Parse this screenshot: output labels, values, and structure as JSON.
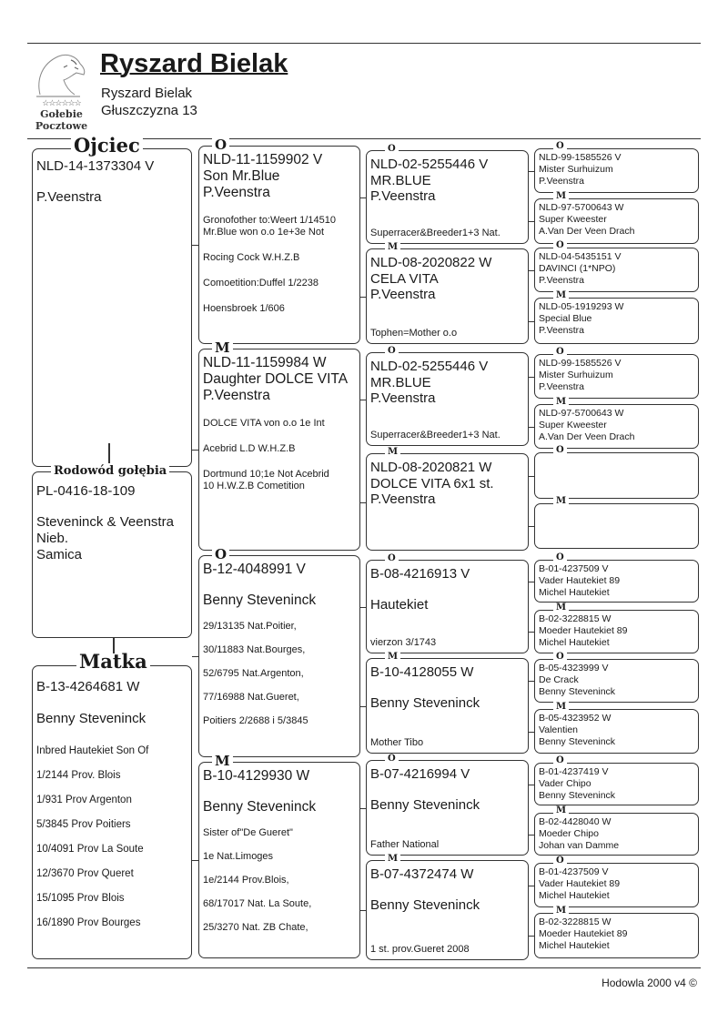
{
  "header": {
    "title": "Ryszard Bielak",
    "owner_name": "Ryszard Bielak",
    "address": "Głuszczyzna 13",
    "logo": {
      "icon": "eagle-head-icon",
      "text_line1": "Gołebie",
      "text_line2": "Pocztowe"
    }
  },
  "ojciec": {
    "label": "Ojciec",
    "ring": "NLD-14-1373304 V",
    "breeder": "P.Veenstra"
  },
  "pigeon": {
    "label": "Rodowód gołębia",
    "ring": "PL-0416-18-109",
    "breeder": "Steveninck & Veenstra",
    "color": "Nieb.",
    "sex": "Samica"
  },
  "matka": {
    "label": "Matka",
    "ring": "B-13-4264681 W",
    "breeder": "Benny Steveninck",
    "notes": [
      "Inbred Hautekiet Son Of",
      "1/2144 Prov. Blois",
      "1/931 Prov Argenton",
      "5/3845 Prov Poitiers",
      "10/4091 Prov La Soute",
      "12/3670 Prov Queret",
      "15/1095 Prov Blois",
      "16/1890 Prov Bourges"
    ]
  },
  "parents": [
    {
      "label": "O",
      "lines": [
        "NLD-11-1159902 V",
        "Son Mr.Blue",
        "P.Veenstra"
      ],
      "notes": [
        "Gronofother to:Weert 1/14510\nMr.Blue won o.o 1e+3e Not",
        "Rocing Cock W.H.Z.B",
        "Comoetition:Duffel 1/2238",
        "Hoensbroek 1/606"
      ]
    },
    {
      "label": "M",
      "lines": [
        "NLD-11-1159984 W",
        "Daughter DOLCE VITA",
        "P.Veenstra"
      ],
      "notes": [
        "DOLCE VITA von o.o 1e Int",
        "Acebrid L.D   W.H.Z.B",
        "Dortmund 10;1e Not Acebrid\n10 H.W.Z.B Cometition"
      ]
    },
    {
      "label": "O",
      "lines": [
        "B-12-4048991 V",
        "Benny Steveninck"
      ],
      "notes": [
        "29/13135 Nat.Poitier,",
        "30/11883 Nat.Bourges,",
        "52/6795 Nat.Argenton,",
        "77/16988 Nat.Gueret,",
        "Poitiers 2/2688 i 5/3845"
      ]
    },
    {
      "label": "M",
      "lines": [
        "B-10-4129930 W",
        "Benny Steveninck"
      ],
      "notes": [
        "Sister of\"De Gueret\"",
        "1e Nat.Limoges",
        "1e/2144 Prov.Blois,",
        "68/17017 Nat. La Soute,",
        "25/3270 Nat. ZB Chate,"
      ]
    }
  ],
  "grandparents": [
    {
      "label": "O",
      "lines": [
        "NLD-02-5255446 V",
        "MR.BLUE",
        "P.Veenstra"
      ],
      "note": "Superracer&Breeder1+3 Nat."
    },
    {
      "label": "M",
      "lines": [
        "NLD-08-2020822 W",
        "CELA VITA",
        "P.Veenstra"
      ],
      "note": "Tophen=Mother o.o"
    },
    {
      "label": "O",
      "lines": [
        "NLD-02-5255446 V",
        "MR.BLUE",
        "P.Veenstra"
      ],
      "note": "Superracer&Breeder1+3 Nat."
    },
    {
      "label": "M",
      "lines": [
        "NLD-08-2020821 W",
        "DOLCE VITA 6x1 st.",
        "P.Veenstra"
      ],
      "note": ""
    },
    {
      "label": "O",
      "lines": [
        "B-08-4216913 V",
        "Hautekiet"
      ],
      "note": "vierzon 3/1743"
    },
    {
      "label": "M",
      "lines": [
        "B-10-4128055 W",
        "Benny Steveninck"
      ],
      "note": "Mother Tibo"
    },
    {
      "label": "O",
      "lines": [
        "B-07-4216994 V",
        "Benny Steveninck"
      ],
      "note": "Father National"
    },
    {
      "label": "M",
      "lines": [
        "B-07-4372474 W",
        "Benny Steveninck"
      ],
      "note": "1 st. prov.Gueret 2008"
    }
  ],
  "great_grandparents": [
    {
      "label": "O",
      "lines": [
        "NLD-99-1585526 V",
        "Mister Surhuizum",
        "P.Veenstra"
      ]
    },
    {
      "label": "M",
      "lines": [
        "NLD-97-5700643 W",
        "Super Kweester",
        "A.Van Der  Veen Drach"
      ]
    },
    {
      "label": "O",
      "lines": [
        "NLD-04-5435151 V",
        "DAVINCI (1*NPO)",
        "P.Veenstra"
      ]
    },
    {
      "label": "M",
      "lines": [
        "NLD-05-1919293 W",
        "Special Blue",
        "P.Veenstra"
      ]
    },
    {
      "label": "O",
      "lines": [
        "NLD-99-1585526 V",
        "Mister Surhuizum",
        "P.Veenstra"
      ]
    },
    {
      "label": "M",
      "lines": [
        "NLD-97-5700643 W",
        "Super Kweester",
        "A.Van Der  Veen Drach"
      ]
    },
    {
      "label": "O",
      "lines": []
    },
    {
      "label": "M",
      "lines": []
    },
    {
      "label": "O",
      "lines": [
        "B-01-4237509 V",
        "Vader Hautekiet 89",
        "Michel Hautekiet"
      ]
    },
    {
      "label": "M",
      "lines": [
        "B-02-3228815 W",
        "Moeder Hautekiet 89",
        "Michel Hautekiet"
      ]
    },
    {
      "label": "O",
      "lines": [
        "B-05-4323999 V",
        "De Crack",
        "Benny Steveninck"
      ]
    },
    {
      "label": "M",
      "lines": [
        "B-05-4323952 W",
        "Valentien",
        "Benny Steveninck"
      ]
    },
    {
      "label": "O",
      "lines": [
        "B-01-4237419 V",
        "Vader Chipo",
        "Benny Steveninck"
      ]
    },
    {
      "label": "M",
      "lines": [
        "B-02-4428040 W",
        "Moeder Chipo",
        "Johan van Damme"
      ]
    },
    {
      "label": "O",
      "lines": [
        "B-01-4237509 V",
        "Vader Hautekiet 89",
        "Michel Hautekiet"
      ]
    },
    {
      "label": "M",
      "lines": [
        "B-02-3228815 W",
        "Moeder Hautekiet 89",
        "Michel Hautekiet"
      ]
    }
  ],
  "footer": {
    "text": "Hodowla 2000 v4 ©"
  }
}
